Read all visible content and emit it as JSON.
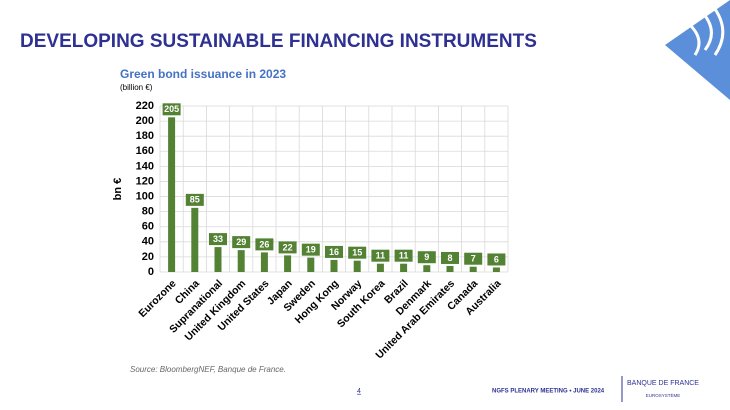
{
  "slide_title": "DEVELOPING SUSTAINABLE FINANCING INSTRUMENTS",
  "chart_data": {
    "type": "bar",
    "title": "Green bond issuance in 2023",
    "subtitle": "(billion €)",
    "y_label": "bn €",
    "categories": [
      "Eurozone",
      "China",
      "Supranational",
      "United Kingdom",
      "United States",
      "Japan",
      "Sweden",
      "Hong Kong",
      "Norway",
      "South Korea",
      "Brazil",
      "Denmark",
      "United Arab Emirates",
      "Canada",
      "Australia"
    ],
    "values": [
      205,
      85,
      33,
      29,
      26,
      22,
      19,
      16,
      15,
      11,
      11,
      9,
      8,
      7,
      6
    ],
    "color": "#548235",
    "ylim": [
      0,
      220
    ],
    "yticks": [
      0,
      20,
      40,
      60,
      80,
      100,
      120,
      140,
      160,
      180,
      200,
      220
    ],
    "grid": true
  },
  "source": "Source: BloombergNEF, Banque de France.",
  "footer": {
    "page": "4",
    "meeting": "NGFS PLENARY MEETING • JUNE 2024",
    "logo": "BANQUE DE FRANCE",
    "logo_sub": "EUROSYSTÈME"
  }
}
